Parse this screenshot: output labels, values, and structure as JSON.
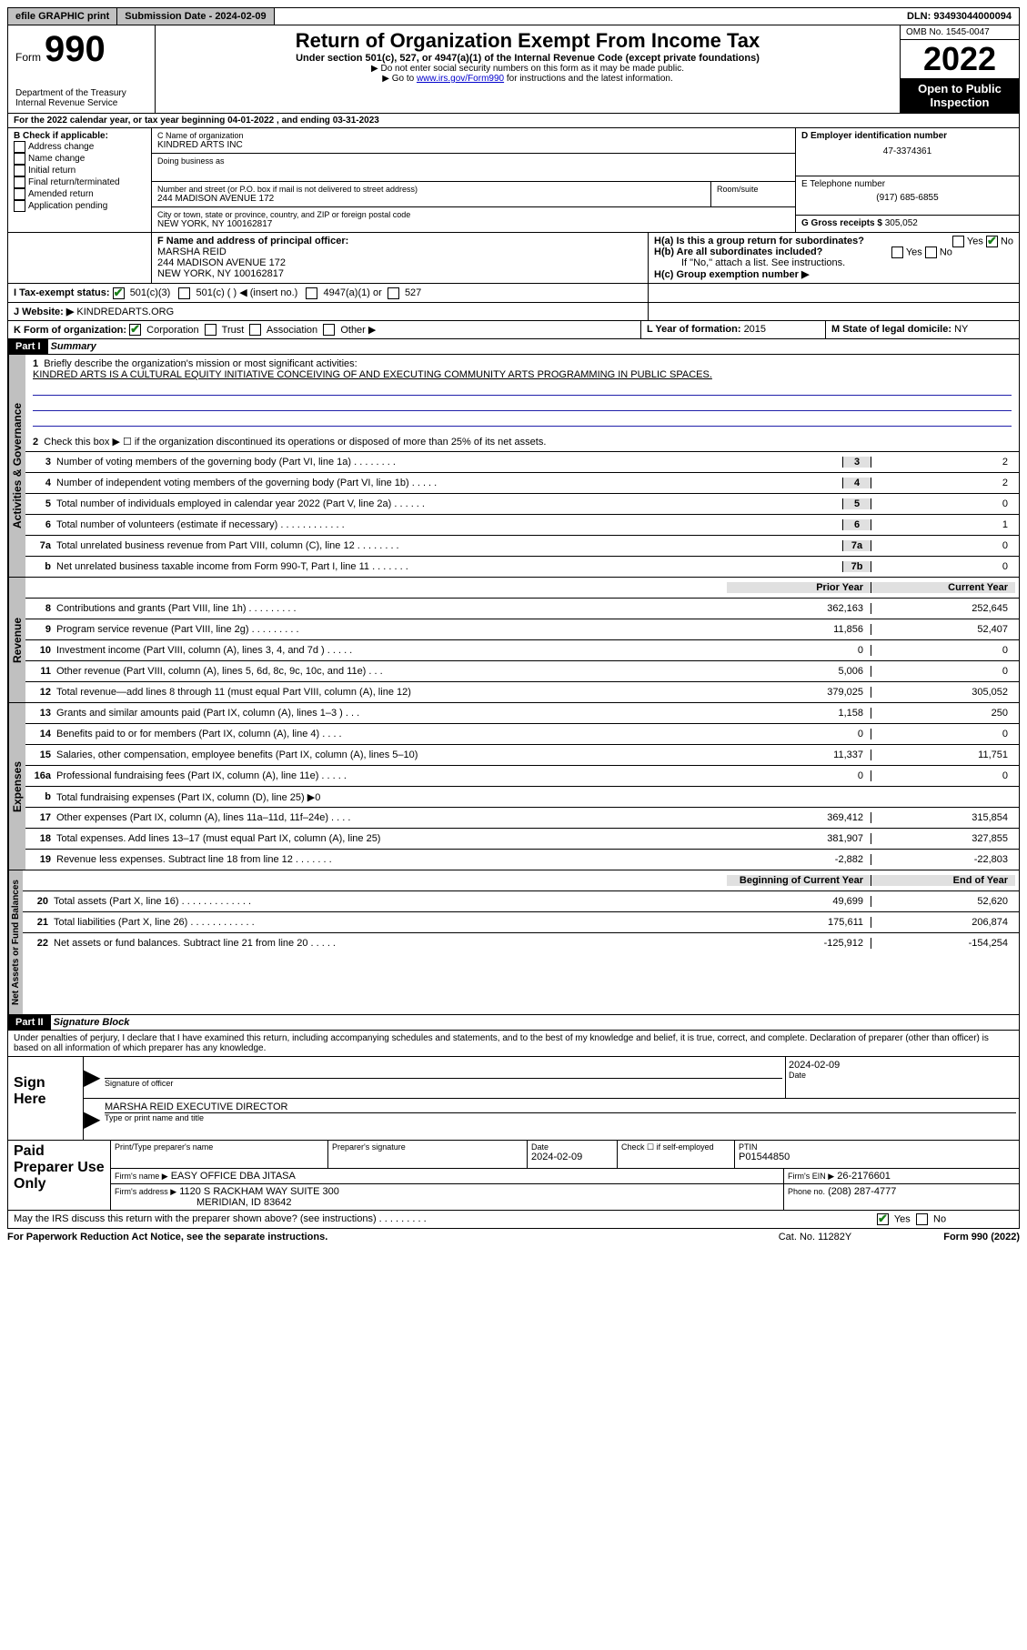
{
  "topbar": {
    "efile": "efile GRAPHIC print",
    "submission_label": "Submission Date - 2024-02-09",
    "dln": "DLN: 93493044000094"
  },
  "header": {
    "form_word": "Form",
    "form_no": "990",
    "dept": "Department of the Treasury",
    "irs": "Internal Revenue Service",
    "title": "Return of Organization Exempt From Income Tax",
    "sub1": "Under section 501(c), 527, or 4947(a)(1) of the Internal Revenue Code (except private foundations)",
    "sub2": "▶ Do not enter social security numbers on this form as it may be made public.",
    "sub3_pre": "▶ Go to ",
    "sub3_link": "www.irs.gov/Form990",
    "sub3_post": " for instructions and the latest information.",
    "omb": "OMB No. 1545-0047",
    "year": "2022",
    "open": "Open to Public Inspection"
  },
  "line_a": "For the 2022 calendar year, or tax year beginning 04-01-2022   , and ending 03-31-2023",
  "box_b": {
    "label": "B Check if applicable:",
    "items": [
      "Address change",
      "Name change",
      "Initial return",
      "Final return/terminated",
      "Amended return",
      "Application pending"
    ]
  },
  "box_c": {
    "label": "C Name of organization",
    "name": "KINDRED ARTS INC",
    "dba_label": "Doing business as",
    "addr_label": "Number and street (or P.O. box if mail is not delivered to street address)",
    "room_label": "Room/suite",
    "addr": "244 MADISON AVENUE 172",
    "city_label": "City or town, state or province, country, and ZIP or foreign postal code",
    "city": "NEW YORK, NY  100162817"
  },
  "box_d": {
    "label": "D Employer identification number",
    "val": "47-3374361"
  },
  "box_e": {
    "label": "E Telephone number",
    "val": "(917) 685-6855"
  },
  "box_g": {
    "label": "G Gross receipts $",
    "val": "305,052"
  },
  "box_f": {
    "label": "F  Name and address of principal officer:",
    "name": "MARSHA REID",
    "addr1": "244 MADISON AVENUE 172",
    "addr2": "NEW YORK, NY  100162817"
  },
  "box_h": {
    "a": "H(a)  Is this a group return for subordinates?",
    "b": "H(b)  Are all subordinates included?",
    "b_note": "If \"No,\" attach a list. See instructions.",
    "c": "H(c)  Group exemption number ▶",
    "yes": "Yes",
    "no": "No"
  },
  "line_i": {
    "label": "I   Tax-exempt status:",
    "o1": "501(c)(3)",
    "o2": "501(c) (  ) ◀ (insert no.)",
    "o3": "4947(a)(1) or",
    "o4": "527"
  },
  "line_j": {
    "label": "J   Website: ▶",
    "val": " KINDREDARTS.ORG"
  },
  "line_k": {
    "label": "K Form of organization:",
    "o1": "Corporation",
    "o2": "Trust",
    "o3": "Association",
    "o4": "Other ▶"
  },
  "line_l": {
    "label": "L Year of formation: ",
    "val": "2015"
  },
  "line_m": {
    "label": "M State of legal domicile: ",
    "val": "NY"
  },
  "part1": {
    "tag": "Part I",
    "title": "Summary"
  },
  "summary": {
    "q1": "Briefly describe the organization's mission or most significant activities:",
    "mission": "KINDRED ARTS IS A CULTURAL EQUITY INITIATIVE CONCEIVING OF AND EXECUTING COMMUNITY ARTS PROGRAMMING IN PUBLIC SPACES.",
    "q2": "Check this box ▶ ☐  if the organization discontinued its operations or disposed of more than 25% of its net assets.",
    "lines_gov": [
      {
        "n": "3",
        "t": "Number of voting members of the governing body (Part VI, line 1a)   .    .    .    .    .    .    .    .",
        "b": "3",
        "v": "2"
      },
      {
        "n": "4",
        "t": "Number of independent voting members of the governing body (Part VI, line 1b)   .    .    .    .    .",
        "b": "4",
        "v": "2"
      },
      {
        "n": "5",
        "t": "Total number of individuals employed in calendar year 2022 (Part V, line 2a)   .    .    .    .    .    .",
        "b": "5",
        "v": "0"
      },
      {
        "n": "6",
        "t": "Total number of volunteers (estimate if necessary)   .    .    .    .    .    .    .    .    .    .    .    .",
        "b": "6",
        "v": "1"
      },
      {
        "n": "7a",
        "t": "Total unrelated business revenue from Part VIII, column (C), line 12   .    .    .    .    .    .    .    .",
        "b": "7a",
        "v": "0"
      },
      {
        "n": "b",
        "t": "Net unrelated business taxable income from Form 990-T, Part I, line 11   .    .    .    .    .    .    .",
        "b": "7b",
        "v": "0"
      }
    ],
    "hdr_prior": "Prior Year",
    "hdr_curr": "Current Year",
    "lines_rev": [
      {
        "n": "8",
        "t": "Contributions and grants (Part VIII, line 1h)   .    .    .    .    .    .    .    .    .",
        "p": "362,163",
        "c": "252,645"
      },
      {
        "n": "9",
        "t": "Program service revenue (Part VIII, line 2g)   .    .    .    .    .    .    .    .    .",
        "p": "11,856",
        "c": "52,407"
      },
      {
        "n": "10",
        "t": "Investment income (Part VIII, column (A), lines 3, 4, and 7d )   .    .    .    .    .",
        "p": "0",
        "c": "0"
      },
      {
        "n": "11",
        "t": "Other revenue (Part VIII, column (A), lines 5, 6d, 8c, 9c, 10c, and 11e)   .    .    .",
        "p": "5,006",
        "c": "0"
      },
      {
        "n": "12",
        "t": "Total revenue—add lines 8 through 11 (must equal Part VIII, column (A), line 12)",
        "p": "379,025",
        "c": "305,052"
      }
    ],
    "lines_exp": [
      {
        "n": "13",
        "t": "Grants and similar amounts paid (Part IX, column (A), lines 1–3 )   .    .    .",
        "p": "1,158",
        "c": "250"
      },
      {
        "n": "14",
        "t": "Benefits paid to or for members (Part IX, column (A), line 4)   .    .    .    .",
        "p": "0",
        "c": "0"
      },
      {
        "n": "15",
        "t": "Salaries, other compensation, employee benefits (Part IX, column (A), lines 5–10)",
        "p": "11,337",
        "c": "11,751"
      },
      {
        "n": "16a",
        "t": "Professional fundraising fees (Part IX, column (A), line 11e)   .    .    .    .    .",
        "p": "0",
        "c": "0"
      },
      {
        "n": "b",
        "t": "Total fundraising expenses (Part IX, column (D), line 25) ▶0",
        "p": "",
        "c": "",
        "shade": true
      },
      {
        "n": "17",
        "t": "Other expenses (Part IX, column (A), lines 11a–11d, 11f–24e)   .    .    .    .",
        "p": "369,412",
        "c": "315,854"
      },
      {
        "n": "18",
        "t": "Total expenses. Add lines 13–17 (must equal Part IX, column (A), line 25)",
        "p": "381,907",
        "c": "327,855"
      },
      {
        "n": "19",
        "t": "Revenue less expenses. Subtract line 18 from line 12   .    .    .    .    .    .    .",
        "p": "-2,882",
        "c": "-22,803"
      }
    ],
    "hdr_beg": "Beginning of Current Year",
    "hdr_end": "End of Year",
    "lines_net": [
      {
        "n": "20",
        "t": "Total assets (Part X, line 16)   .    .    .    .    .    .    .    .    .    .    .    .    .",
        "p": "49,699",
        "c": "52,620"
      },
      {
        "n": "21",
        "t": "Total liabilities (Part X, line 26)   .    .    .    .    .    .    .    .    .    .    .    .",
        "p": "175,611",
        "c": "206,874"
      },
      {
        "n": "22",
        "t": "Net assets or fund balances. Subtract line 21 from line 20   .    .    .    .    .",
        "p": "-125,912",
        "c": "-154,254"
      }
    ]
  },
  "vtabs": {
    "gov": "Activities & Governance",
    "rev": "Revenue",
    "exp": "Expenses",
    "net": "Net Assets or Fund Balances"
  },
  "part2": {
    "tag": "Part II",
    "title": "Signature Block"
  },
  "perjury": "Under penalties of perjury, I declare that I have examined this return, including accompanying schedules and statements, and to the best of my knowledge and belief, it is true, correct, and complete. Declaration of preparer (other than officer) is based on all information of which preparer has any knowledge.",
  "sign": {
    "here": "Sign Here",
    "sig_officer": "Signature of officer",
    "date": "Date",
    "date_val": "2024-02-09",
    "name": "MARSHA REID  EXECUTIVE DIRECTOR",
    "name_label": "Type or print name and title"
  },
  "paid": {
    "label": "Paid Preparer Use Only",
    "h1": "Print/Type preparer's name",
    "h2": "Preparer's signature",
    "h3": "Date",
    "h3v": "2024-02-09",
    "h4": "Check ☐ if self-employed",
    "h5": "PTIN",
    "h5v": "P01544850",
    "firm_name_l": "Firm's name    ▶",
    "firm_name": "EASY OFFICE DBA JITASA",
    "firm_ein_l": "Firm's EIN ▶",
    "firm_ein": "26-2176601",
    "firm_addr_l": "Firm's address ▶",
    "firm_addr1": "1120 S RACKHAM WAY SUITE 300",
    "firm_addr2": "MERIDIAN, ID  83642",
    "phone_l": "Phone no.",
    "phone": "(208) 287-4777"
  },
  "footer": {
    "discuss": "May the IRS discuss this return with the preparer shown above? (see instructions)   .    .    .    .    .    .    .    .    .",
    "yes": "Yes",
    "no": "No",
    "paperwork": "For Paperwork Reduction Act Notice, see the separate instructions.",
    "cat": "Cat. No. 11282Y",
    "form": "Form 990 (2022)"
  }
}
